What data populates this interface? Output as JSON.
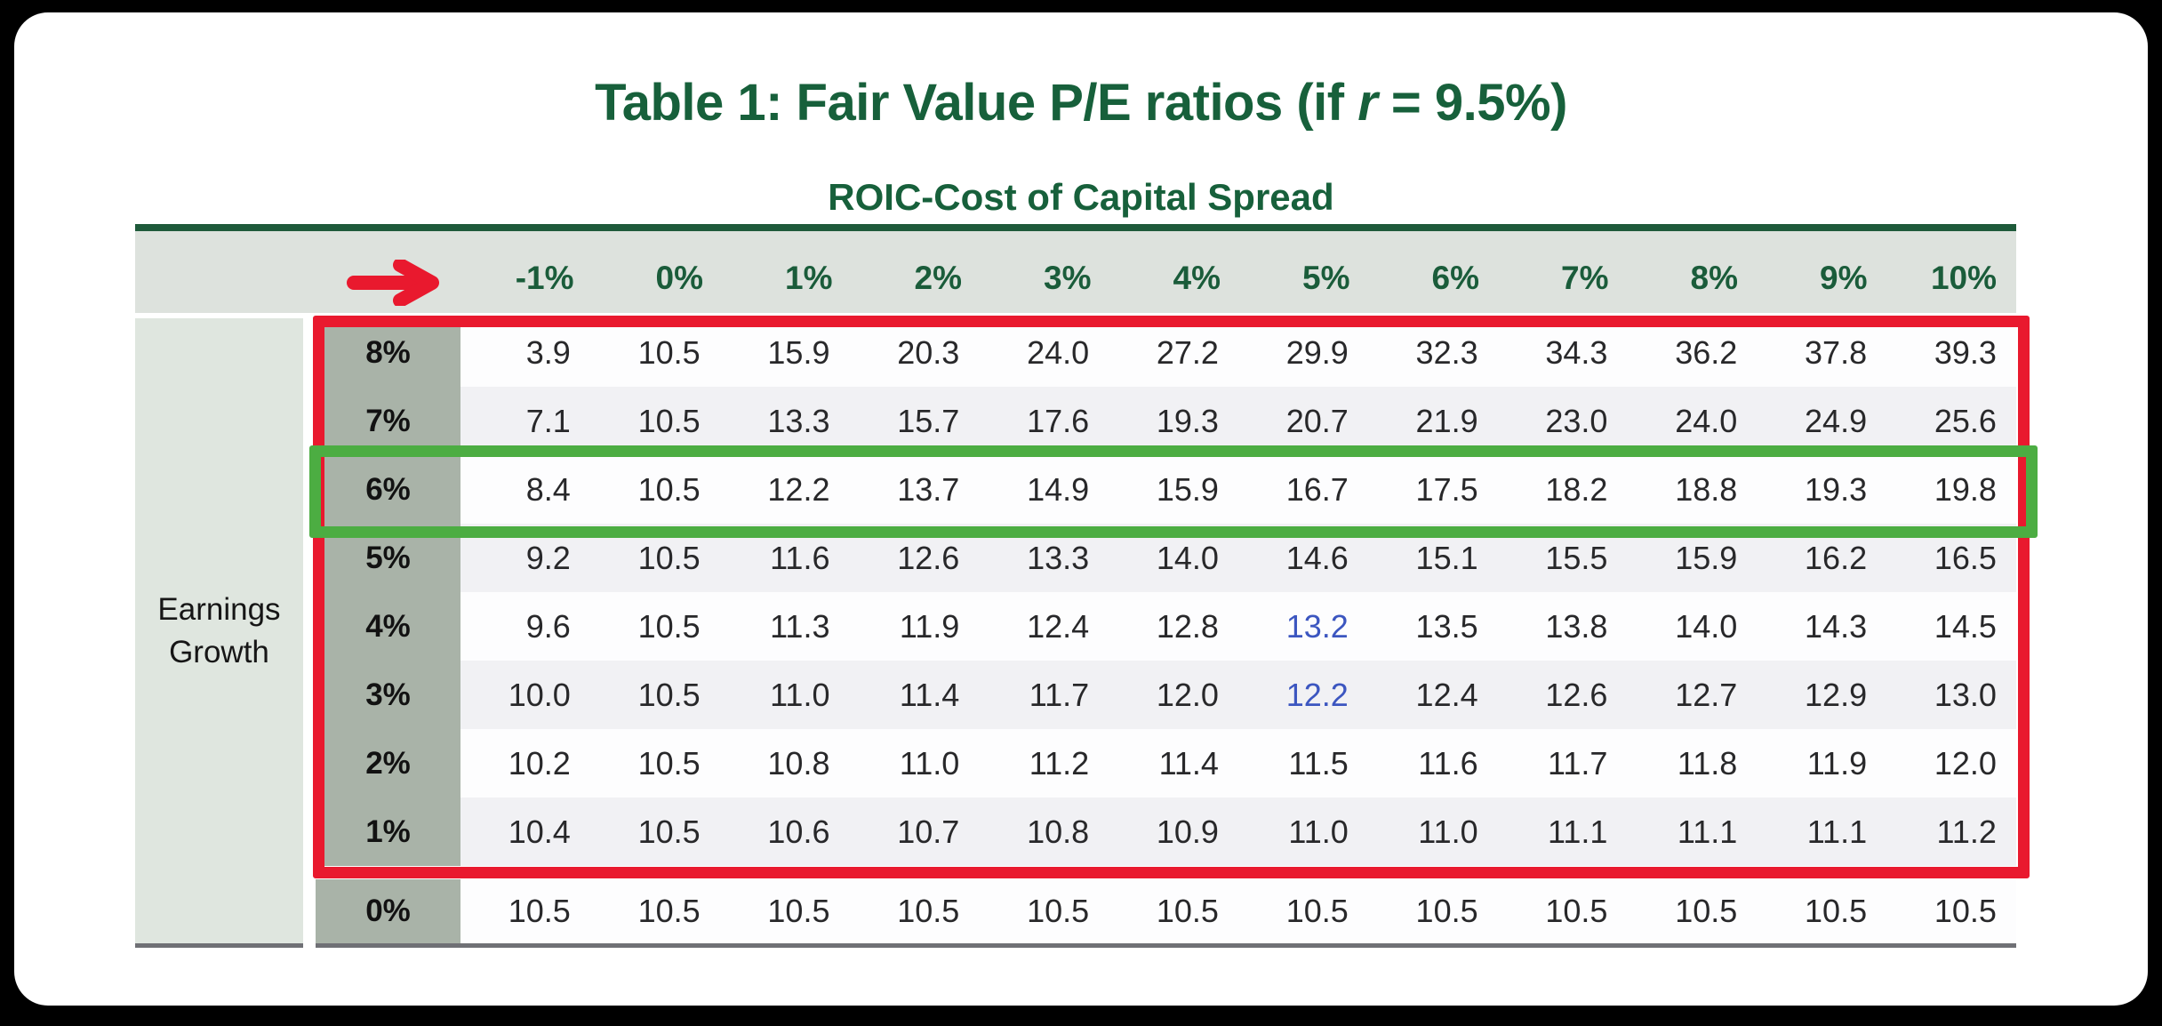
{
  "title": {
    "pre": "Table 1: Fair Value P/E ratios (if ",
    "var": "r",
    "post": " = 9.5%)"
  },
  "subtitle": "ROIC-Cost of Capital Spread",
  "sidebar_label": "Earnings\nGrowth",
  "chart_data": {
    "type": "table",
    "title": "Table 1: Fair Value P/E ratios (if r = 9.5%)",
    "column_group_label": "ROIC-Cost of Capital Spread",
    "row_group_label": "Earnings Growth",
    "col_headers": [
      "-1%",
      "0%",
      "1%",
      "2%",
      "3%",
      "4%",
      "5%",
      "6%",
      "7%",
      "8%",
      "9%",
      "10%"
    ],
    "row_headers": [
      "8%",
      "7%",
      "6%",
      "5%",
      "4%",
      "3%",
      "2%",
      "1%",
      "0%"
    ],
    "rows": [
      [
        "3.9",
        "10.5",
        "15.9",
        "20.3",
        "24.0",
        "27.2",
        "29.9",
        "32.3",
        "34.3",
        "36.2",
        "37.8",
        "39.3"
      ],
      [
        "7.1",
        "10.5",
        "13.3",
        "15.7",
        "17.6",
        "19.3",
        "20.7",
        "21.9",
        "23.0",
        "24.0",
        "24.9",
        "25.6"
      ],
      [
        "8.4",
        "10.5",
        "12.2",
        "13.7",
        "14.9",
        "15.9",
        "16.7",
        "17.5",
        "18.2",
        "18.8",
        "19.3",
        "19.8"
      ],
      [
        "9.2",
        "10.5",
        "11.6",
        "12.6",
        "13.3",
        "14.0",
        "14.6",
        "15.1",
        "15.5",
        "15.9",
        "16.2",
        "16.5"
      ],
      [
        "9.6",
        "10.5",
        "11.3",
        "11.9",
        "12.4",
        "12.8",
        "13.2",
        "13.5",
        "13.8",
        "14.0",
        "14.3",
        "14.5"
      ],
      [
        "10.0",
        "10.5",
        "11.0",
        "11.4",
        "11.7",
        "12.0",
        "12.2",
        "12.4",
        "12.6",
        "12.7",
        "12.9",
        "13.0"
      ],
      [
        "10.2",
        "10.5",
        "10.8",
        "11.0",
        "11.2",
        "11.4",
        "11.5",
        "11.6",
        "11.7",
        "11.8",
        "11.9",
        "12.0"
      ],
      [
        "10.4",
        "10.5",
        "10.6",
        "10.7",
        "10.8",
        "10.9",
        "11.0",
        "11.0",
        "11.1",
        "11.1",
        "11.1",
        "11.2"
      ],
      [
        "10.5",
        "10.5",
        "10.5",
        "10.5",
        "10.5",
        "10.5",
        "10.5",
        "10.5",
        "10.5",
        "10.5",
        "10.5",
        "10.5"
      ]
    ],
    "blue_cells": [
      [
        4,
        6
      ],
      [
        5,
        6
      ]
    ],
    "annotations": {
      "red_box_encloses_rows": [
        "8%",
        "7%",
        "6%",
        "5%",
        "4%",
        "3%",
        "2%",
        "1%"
      ],
      "green_box_encloses_row": "6%",
      "arrow": "red right arrow in header band"
    },
    "layout": {
      "legend": "none",
      "grid": "zebra-striped rows"
    },
    "colors": {
      "title_green": "#17603b",
      "header_text_green": "#1a5c3a",
      "top_rule_green": "#1e5a3a",
      "header_band_bg": "#dde2dd",
      "sidebar_bg": "#dfe6df",
      "row_label_bg": "#a9b3a8",
      "row_alt_bg": "#f1f1f4",
      "red_box": "#e9192e",
      "green_box": "#4cad42",
      "blue_value": "#3c56c0",
      "bottom_rule": "#6f7075"
    }
  }
}
